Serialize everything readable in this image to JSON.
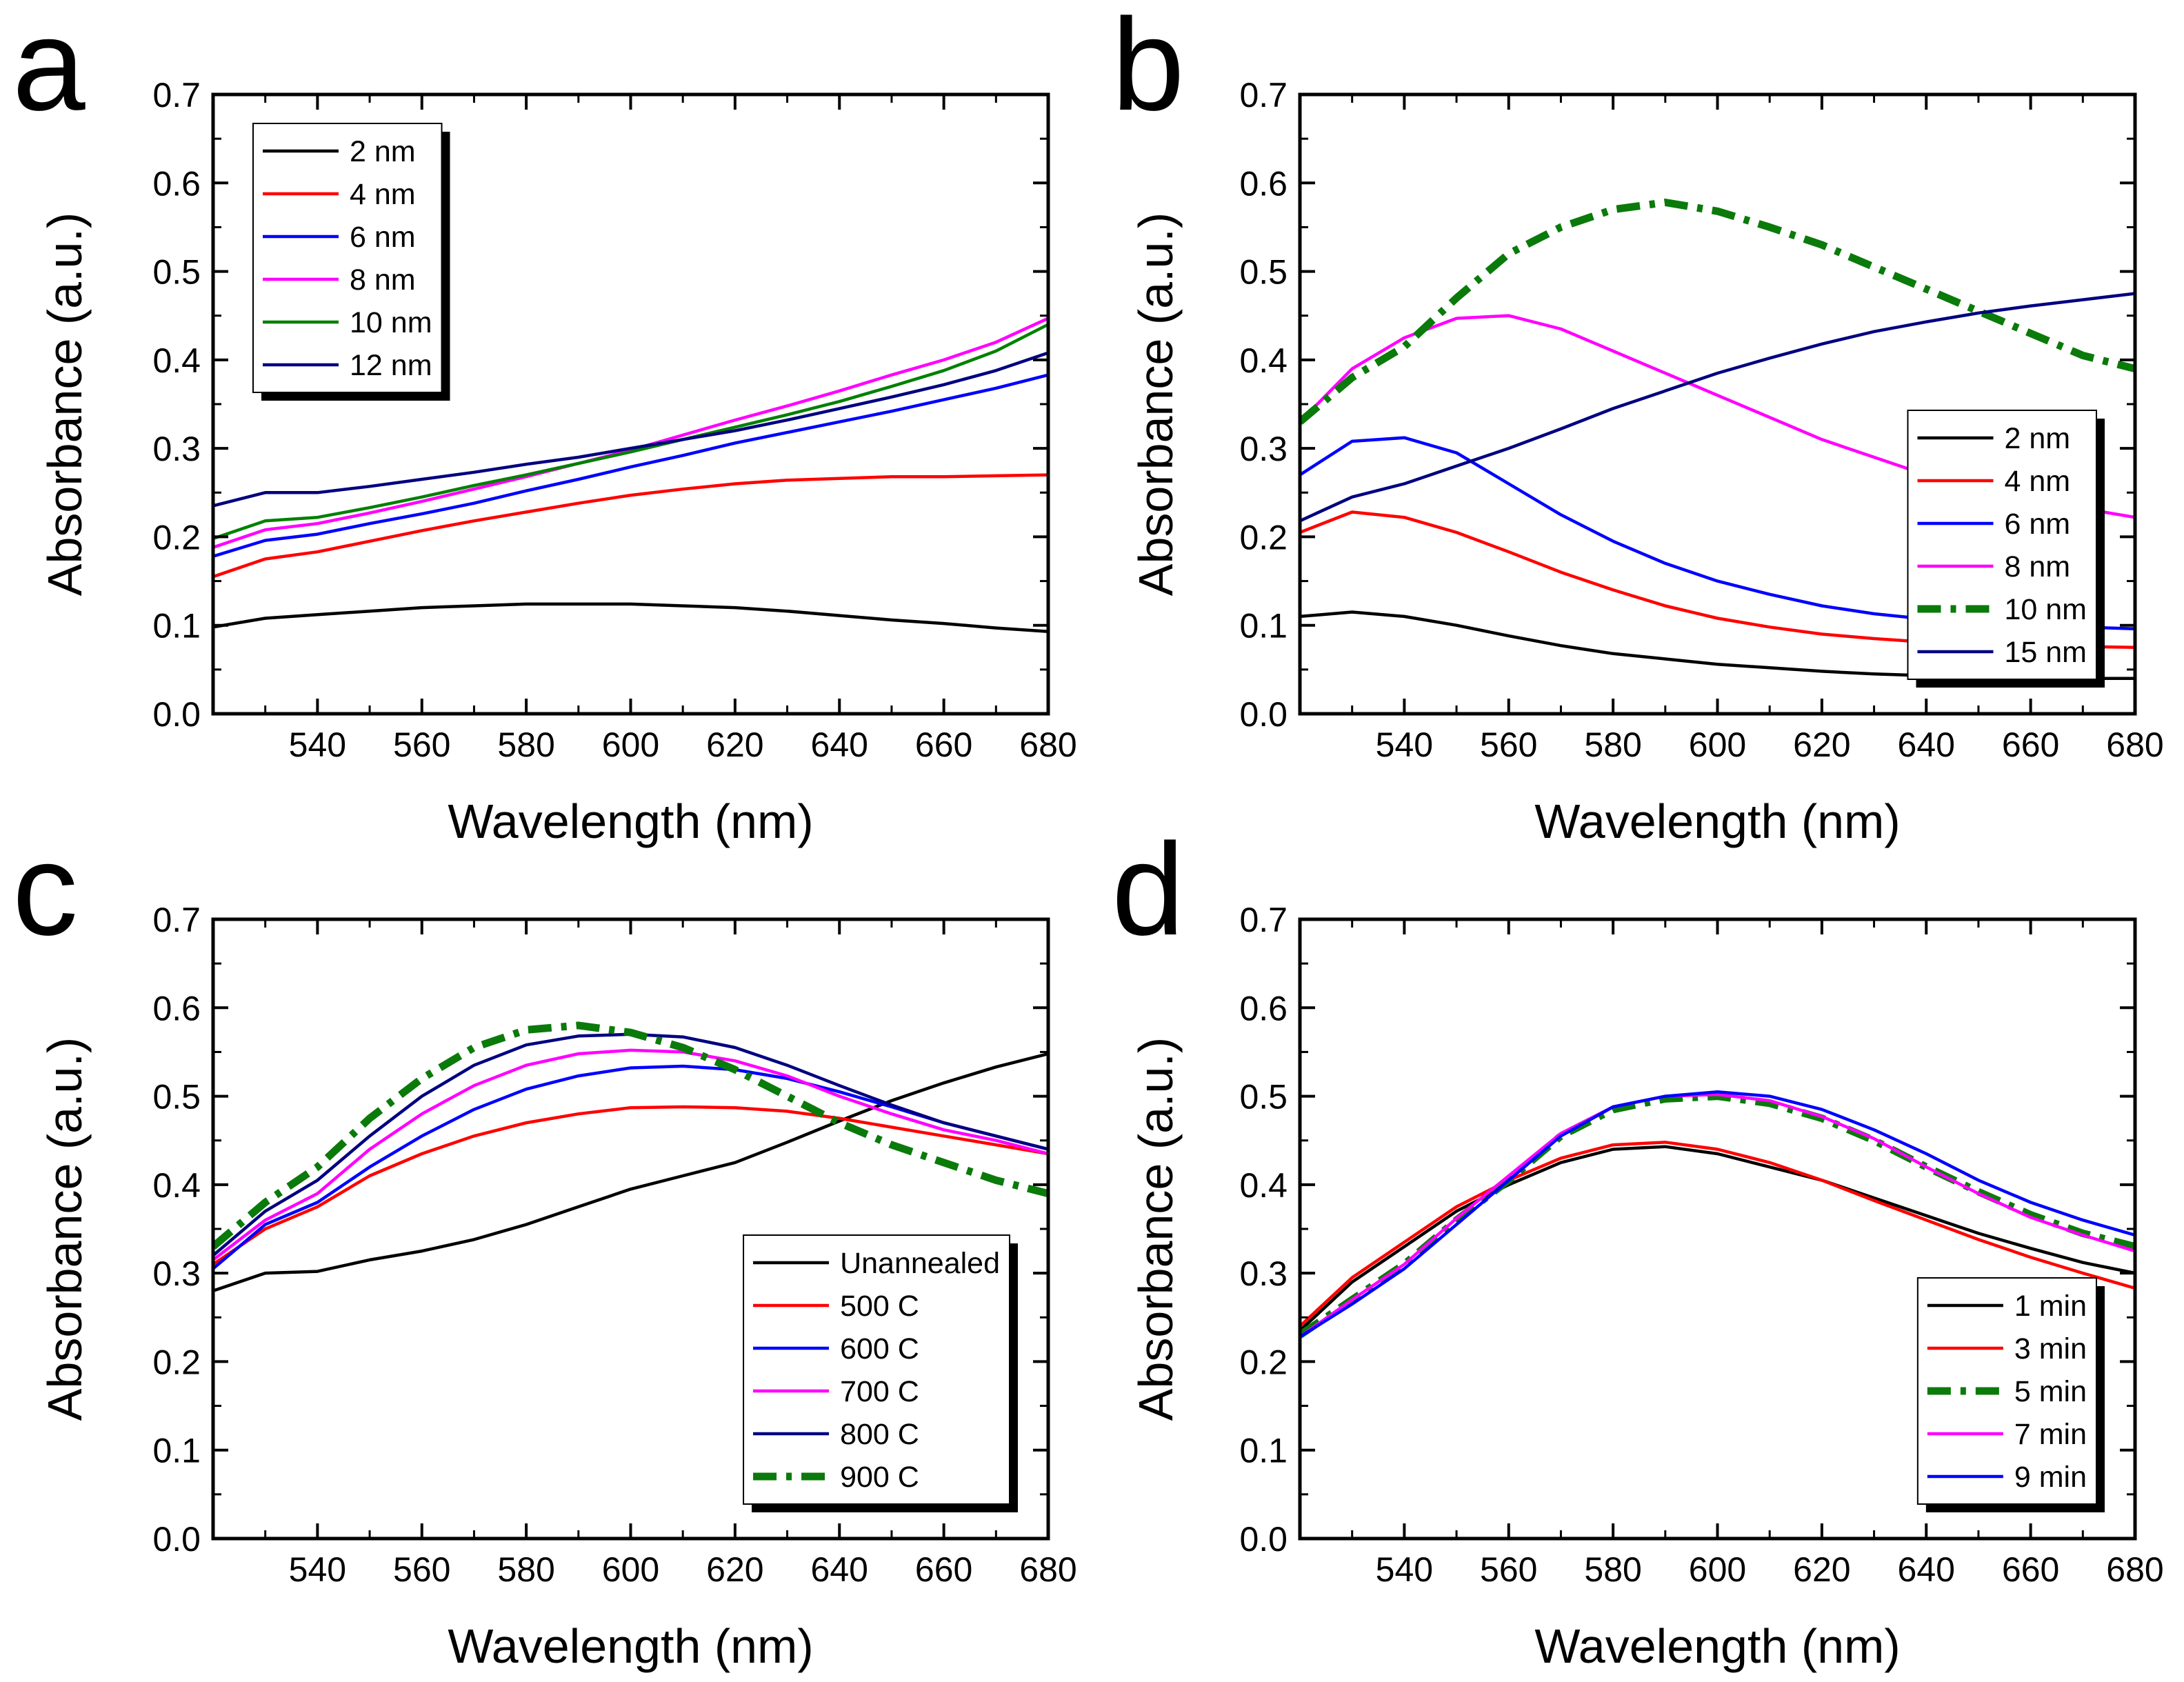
{
  "chart_data": [
    {
      "type": "line",
      "label": "a",
      "xlabel": "Wavelength (nm)",
      "ylabel": "Absorbance (a.u.)",
      "x": [
        520,
        530,
        540,
        550,
        560,
        570,
        580,
        590,
        600,
        610,
        620,
        630,
        640,
        650,
        660,
        670,
        680
      ],
      "xlim": [
        520,
        680
      ],
      "xticks": [
        540,
        560,
        580,
        600,
        620,
        640,
        660,
        680
      ],
      "ylim": [
        0,
        0.7
      ],
      "yticks": [
        {
          "value": 0,
          "label": "0.0"
        },
        0.1,
        0.2,
        0.3,
        0.4,
        0.5,
        0.6,
        0.7
      ],
      "legend": "upper left",
      "series": [
        {
          "name": "2 nm",
          "color": "#000000",
          "values": [
            0.098,
            0.108,
            0.112,
            0.116,
            0.12,
            0.122,
            0.124,
            0.124,
            0.124,
            0.122,
            0.12,
            0.116,
            0.111,
            0.106,
            0.102,
            0.097,
            0.093
          ]
        },
        {
          "name": "4 nm",
          "color": "#ff0000",
          "values": [
            0.155,
            0.175,
            0.183,
            0.195,
            0.207,
            0.218,
            0.228,
            0.238,
            0.247,
            0.254,
            0.26,
            0.264,
            0.266,
            0.268,
            0.268,
            0.269,
            0.27
          ]
        },
        {
          "name": "6 nm",
          "color": "#0000ff",
          "values": [
            0.178,
            0.196,
            0.203,
            0.215,
            0.226,
            0.238,
            0.252,
            0.265,
            0.279,
            0.292,
            0.306,
            0.318,
            0.33,
            0.342,
            0.355,
            0.368,
            0.383
          ]
        },
        {
          "name": "8 nm",
          "color": "#ff00ff",
          "values": [
            0.188,
            0.208,
            0.215,
            0.227,
            0.24,
            0.254,
            0.268,
            0.283,
            0.298,
            0.315,
            0.332,
            0.348,
            0.365,
            0.383,
            0.4,
            0.42,
            0.447
          ]
        },
        {
          "name": "10 nm",
          "color": "#008000",
          "values": [
            0.198,
            0.218,
            0.222,
            0.233,
            0.245,
            0.258,
            0.27,
            0.283,
            0.296,
            0.31,
            0.324,
            0.338,
            0.353,
            0.37,
            0.388,
            0.41,
            0.44
          ]
        },
        {
          "name": "12 nm",
          "color": "#000080",
          "values": [
            0.235,
            0.25,
            0.25,
            0.257,
            0.265,
            0.273,
            0.282,
            0.29,
            0.3,
            0.31,
            0.32,
            0.332,
            0.345,
            0.358,
            0.372,
            0.388,
            0.408
          ]
        }
      ]
    },
    {
      "type": "line",
      "label": "b",
      "xlabel": "Wavelength (nm)",
      "ylabel": "Absorbance (a.u.)",
      "x": [
        520,
        530,
        540,
        550,
        560,
        570,
        580,
        590,
        600,
        610,
        620,
        630,
        640,
        650,
        660,
        670,
        680
      ],
      "xlim": [
        520,
        680
      ],
      "xticks": [
        540,
        560,
        580,
        600,
        620,
        640,
        660,
        680
      ],
      "ylim": [
        0,
        0.7
      ],
      "yticks": [
        {
          "value": 0,
          "label": "0.0"
        },
        0.1,
        0.2,
        0.3,
        0.4,
        0.5,
        0.6,
        0.7
      ],
      "legend": "lower right",
      "series": [
        {
          "name": "2 nm",
          "color": "#000000",
          "values": [
            0.11,
            0.115,
            0.11,
            0.1,
            0.088,
            0.077,
            0.068,
            0.062,
            0.056,
            0.052,
            0.048,
            0.045,
            0.043,
            0.042,
            0.041,
            0.04,
            0.04
          ]
        },
        {
          "name": "4 nm",
          "color": "#ff0000",
          "values": [
            0.205,
            0.228,
            0.222,
            0.205,
            0.183,
            0.16,
            0.14,
            0.122,
            0.108,
            0.098,
            0.09,
            0.085,
            0.081,
            0.079,
            0.077,
            0.076,
            0.075
          ]
        },
        {
          "name": "6 nm",
          "color": "#0000ff",
          "values": [
            0.27,
            0.308,
            0.312,
            0.295,
            0.26,
            0.225,
            0.195,
            0.17,
            0.15,
            0.135,
            0.122,
            0.113,
            0.107,
            0.103,
            0.1,
            0.098,
            0.096
          ]
        },
        {
          "name": "8 nm",
          "color": "#ff00ff",
          "values": [
            0.33,
            0.39,
            0.425,
            0.447,
            0.45,
            0.435,
            0.41,
            0.385,
            0.36,
            0.335,
            0.31,
            0.29,
            0.27,
            0.255,
            0.242,
            0.232,
            0.222
          ]
        },
        {
          "name": "10 nm",
          "color": "#0a7a0a",
          "linestyle": "dashdot",
          "values": [
            0.33,
            0.38,
            0.415,
            0.47,
            0.52,
            0.55,
            0.57,
            0.578,
            0.568,
            0.55,
            0.53,
            0.505,
            0.48,
            0.455,
            0.43,
            0.405,
            0.39
          ]
        },
        {
          "name": "15 nm",
          "color": "#000080",
          "values": [
            0.218,
            0.245,
            0.26,
            0.28,
            0.3,
            0.322,
            0.345,
            0.365,
            0.385,
            0.402,
            0.418,
            0.432,
            0.443,
            0.453,
            0.461,
            0.468,
            0.475
          ]
        }
      ]
    },
    {
      "type": "line",
      "label": "c",
      "xlabel": "Wavelength (nm)",
      "ylabel": "Absorbance (a.u.)",
      "x": [
        520,
        530,
        540,
        550,
        560,
        570,
        580,
        590,
        600,
        610,
        620,
        630,
        640,
        650,
        660,
        670,
        680
      ],
      "xlim": [
        520,
        680
      ],
      "xticks": [
        540,
        560,
        580,
        600,
        620,
        640,
        660,
        680
      ],
      "ylim": [
        0,
        0.7
      ],
      "yticks": [
        {
          "value": 0,
          "label": "0.0"
        },
        0.1,
        0.2,
        0.3,
        0.4,
        0.5,
        0.6,
        0.7
      ],
      "legend": "lower right",
      "series": [
        {
          "name": "Unannealed",
          "color": "#000000",
          "values": [
            0.28,
            0.3,
            0.302,
            0.315,
            0.325,
            0.338,
            0.355,
            0.375,
            0.395,
            0.41,
            0.425,
            0.448,
            0.472,
            0.495,
            0.515,
            0.533,
            0.548
          ]
        },
        {
          "name": "500 C",
          "color": "#ff0000",
          "values": [
            0.31,
            0.35,
            0.375,
            0.41,
            0.435,
            0.455,
            0.47,
            0.48,
            0.487,
            0.488,
            0.487,
            0.483,
            0.475,
            0.465,
            0.455,
            0.445,
            0.435
          ]
        },
        {
          "name": "600 C",
          "color": "#0000ff",
          "values": [
            0.305,
            0.355,
            0.38,
            0.42,
            0.455,
            0.485,
            0.508,
            0.523,
            0.532,
            0.534,
            0.53,
            0.52,
            0.505,
            0.488,
            0.47,
            0.455,
            0.44
          ]
        },
        {
          "name": "700 C",
          "color": "#ff00ff",
          "values": [
            0.315,
            0.36,
            0.39,
            0.44,
            0.48,
            0.512,
            0.535,
            0.548,
            0.552,
            0.55,
            0.54,
            0.523,
            0.5,
            0.48,
            0.462,
            0.45,
            0.435
          ]
        },
        {
          "name": "800 C",
          "color": "#000080",
          "values": [
            0.32,
            0.37,
            0.405,
            0.455,
            0.5,
            0.535,
            0.558,
            0.568,
            0.57,
            0.567,
            0.555,
            0.535,
            0.512,
            0.49,
            0.47,
            0.455,
            0.44
          ]
        },
        {
          "name": "900 C",
          "color": "#0a7a0a",
          "linestyle": "dashdot",
          "values": [
            0.33,
            0.38,
            0.42,
            0.475,
            0.52,
            0.555,
            0.575,
            0.58,
            0.572,
            0.555,
            0.53,
            0.5,
            0.47,
            0.445,
            0.425,
            0.405,
            0.39
          ]
        }
      ]
    },
    {
      "type": "line",
      "label": "d",
      "xlabel": "Wavelength (nm)",
      "ylabel": "Absorbance (a.u.)",
      "x": [
        520,
        530,
        540,
        550,
        560,
        570,
        580,
        590,
        600,
        610,
        620,
        630,
        640,
        650,
        660,
        670,
        680
      ],
      "xlim": [
        520,
        680
      ],
      "xticks": [
        540,
        560,
        580,
        600,
        620,
        640,
        660,
        680
      ],
      "ylim": [
        0,
        0.7
      ],
      "yticks": [
        {
          "value": 0,
          "label": "0.0"
        },
        0.1,
        0.2,
        0.3,
        0.4,
        0.5,
        0.6,
        0.7
      ],
      "legend": "lower right",
      "series": [
        {
          "name": "1 min",
          "color": "#000000",
          "values": [
            0.235,
            0.29,
            0.33,
            0.37,
            0.4,
            0.425,
            0.44,
            0.443,
            0.435,
            0.42,
            0.405,
            0.385,
            0.365,
            0.345,
            0.328,
            0.312,
            0.3
          ]
        },
        {
          "name": "3 min",
          "color": "#ff0000",
          "values": [
            0.24,
            0.295,
            0.335,
            0.375,
            0.405,
            0.43,
            0.445,
            0.448,
            0.44,
            0.425,
            0.405,
            0.382,
            0.36,
            0.338,
            0.318,
            0.3,
            0.283
          ]
        },
        {
          "name": "5 min",
          "color": "#0a7a0a",
          "linestyle": "dashdot",
          "values": [
            0.23,
            0.27,
            0.31,
            0.36,
            0.405,
            0.455,
            0.485,
            0.497,
            0.5,
            0.492,
            0.475,
            0.45,
            0.42,
            0.392,
            0.366,
            0.345,
            0.33
          ]
        },
        {
          "name": "7 min",
          "color": "#ff00ff",
          "values": [
            0.228,
            0.27,
            0.31,
            0.362,
            0.41,
            0.458,
            0.488,
            0.5,
            0.502,
            0.495,
            0.477,
            0.452,
            0.42,
            0.39,
            0.363,
            0.343,
            0.325
          ]
        },
        {
          "name": "9 min",
          "color": "#0000ff",
          "values": [
            0.228,
            0.265,
            0.305,
            0.355,
            0.405,
            0.455,
            0.488,
            0.5,
            0.505,
            0.5,
            0.485,
            0.462,
            0.435,
            0.405,
            0.38,
            0.36,
            0.343
          ]
        }
      ]
    }
  ]
}
